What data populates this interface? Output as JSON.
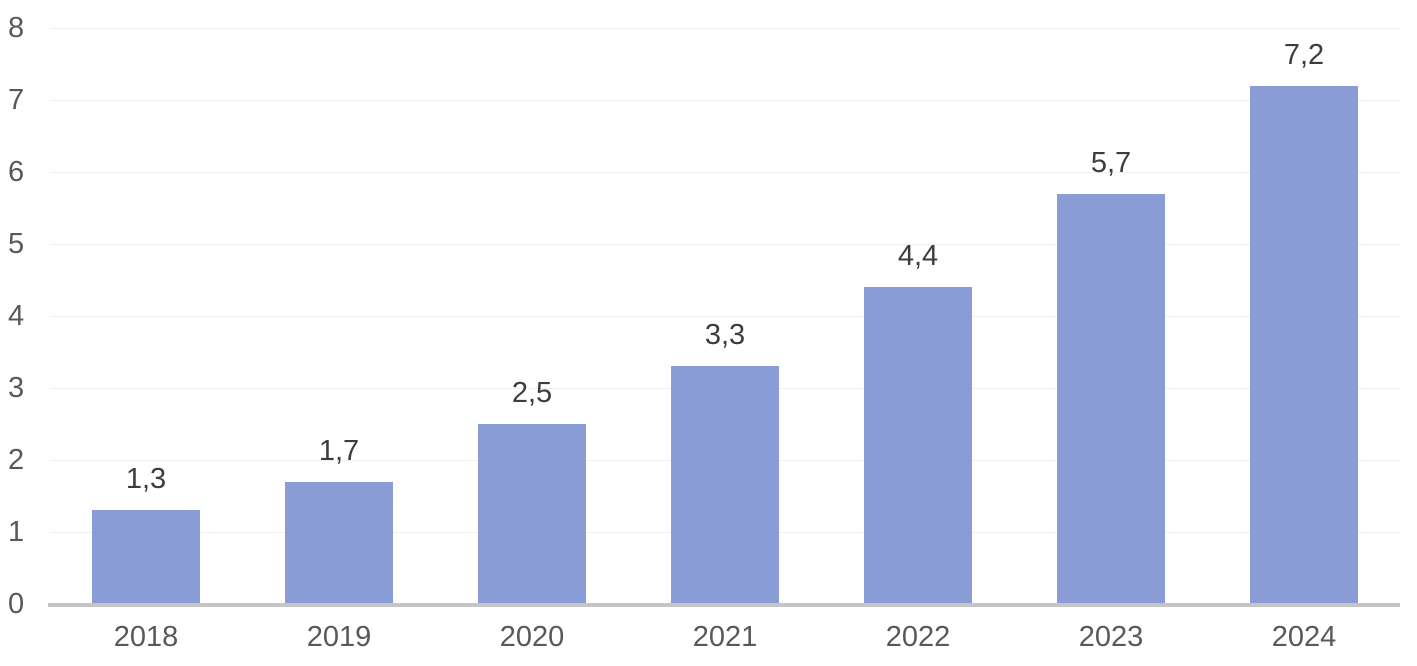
{
  "chart_data": {
    "type": "bar",
    "title": "",
    "xlabel": "",
    "ylabel": "",
    "categories": [
      "2018",
      "2019",
      "2020",
      "2021",
      "2022",
      "2023",
      "2024"
    ],
    "values": [
      1.3,
      1.7,
      2.5,
      3.3,
      4.4,
      5.7,
      7.2
    ],
    "value_labels": [
      "1,3",
      "1,7",
      "2,5",
      "3,3",
      "4,4",
      "5,7",
      "7,2"
    ],
    "ylim": [
      0,
      8
    ],
    "yticks": [
      0,
      1,
      2,
      3,
      4,
      5,
      6,
      7,
      8
    ],
    "ytick_labels": [
      "0",
      "1",
      "2",
      "3",
      "4",
      "5",
      "6",
      "7",
      "8"
    ],
    "grid": true,
    "legend": false,
    "decimal_separator": ",",
    "colors": {
      "bar_fill": "#8A9CD6",
      "gridline": "#EFEFEF",
      "axis_line": "#C5C5C5",
      "value_label": "#3D3D3D",
      "tick_label": "#595959",
      "background": "#FFFFFF"
    }
  }
}
